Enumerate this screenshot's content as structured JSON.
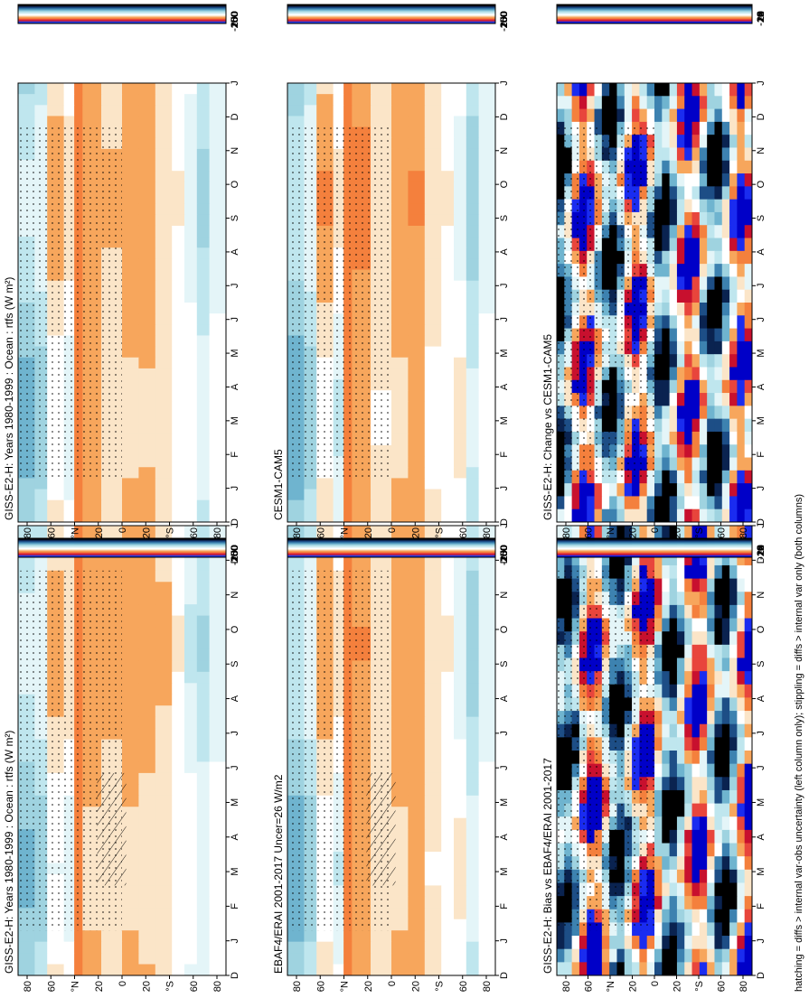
{
  "figure": {
    "footnote": "hatching = diffs > internal var-obs uncertainty (left column only); stippling = diffs > internal var only (both columns)",
    "months_axis": [
      "D",
      "J",
      "F",
      "M",
      "A",
      "M",
      "J",
      "J",
      "A",
      "S",
      "O",
      "N",
      "D",
      "J"
    ],
    "lat_axis": [
      "80",
      "60",
      "°N",
      "20",
      "0",
      "20",
      "°S",
      "60",
      "80"
    ]
  },
  "colorbars": {
    "flux": {
      "labels": [
        "250",
        "200",
        "150",
        "100",
        "50",
        "0",
        "-50",
        "-100",
        "-150",
        "-200",
        "-250"
      ],
      "colors": [
        "#1a2cd4",
        "#2a44e8",
        "#c8102e",
        "#e8453c",
        "#f4803d",
        "#f7a65c",
        "#fbe5c8",
        "#ffffff",
        "#e4f5f8",
        "#bfe6ee",
        "#9fd3e0",
        "#6fb4cf",
        "#3d82b0",
        "#1d4e86",
        "#0a2350",
        "#000000"
      ]
    },
    "change": {
      "labels": [
        "20",
        "16",
        "12",
        "8",
        "4",
        "0",
        "-4",
        "-8",
        "-12",
        "-16",
        "-20"
      ],
      "colors": [
        "#0000c8",
        "#1a2cf0",
        "#c8102e",
        "#e8453c",
        "#f4803d",
        "#f7a65c",
        "#fbe5c8",
        "#ffffff",
        "#e4f5f8",
        "#bfe6ee",
        "#9fd3e0",
        "#6fb4cf",
        "#3d82b0",
        "#1d4e86",
        "#0a2350",
        "#000000"
      ]
    }
  },
  "panels": [
    {
      "id": "p-left-top",
      "title": "GISS-E2-H: Years 1980-1999 : Ocean : rtfs (W m²)",
      "kind": "flux",
      "hatch": true
    },
    {
      "id": "p-right-top",
      "title": "GISS-E2-H: Years 1980-1999 : Ocean : rtfs (W m²)",
      "kind": "flux",
      "hatch": false
    },
    {
      "id": "p-left-mid",
      "title": "EBAF4/ERAI 2001-2017 Uncer=26 W/m2",
      "kind": "flux",
      "hatch": true
    },
    {
      "id": "p-right-mid",
      "title": "CESM1-CAM5",
      "kind": "flux",
      "hatch": false
    },
    {
      "id": "p-left-bot",
      "title": "GISS-E2-H: Bias vs EBAF4/ERAI 2001-2017",
      "kind": "change",
      "hatch": true
    },
    {
      "id": "p-right-bot",
      "title": "GISS-E2-H: Change vs CESM1-CAM5",
      "kind": "change",
      "hatch": false
    }
  ],
  "chart_data": [
    {
      "type": "heatmap",
      "title": "GISS-E2-H: Years 1980-1999 : Ocean : rtfs (W m²)",
      "x": [
        "D",
        "J",
        "F",
        "M",
        "A",
        "M",
        "J",
        "J",
        "A",
        "S",
        "O",
        "N",
        "D",
        "J"
      ],
      "y": [
        "80",
        "60",
        "°N",
        "20",
        "0",
        "20",
        "°S",
        "60",
        "80"
      ],
      "colorbar": [
        250,
        200,
        150,
        100,
        50,
        0,
        -50,
        -100,
        -150,
        -200,
        -250
      ]
    },
    {
      "type": "heatmap",
      "title": "GISS-E2-H: Years 1980-1999 : Ocean : rtfs (W m²)",
      "x": [
        "D",
        "J",
        "F",
        "M",
        "A",
        "M",
        "J",
        "J",
        "A",
        "S",
        "O",
        "N",
        "D",
        "J"
      ],
      "y": [
        "80",
        "60",
        "°N",
        "20",
        "0",
        "20",
        "°S",
        "60",
        "80"
      ],
      "colorbar": [
        250,
        200,
        150,
        100,
        50,
        0,
        -50,
        -100,
        -150,
        -200,
        -250
      ]
    },
    {
      "type": "heatmap",
      "title": "EBAF4/ERAI 2001-2017 Uncer=26 W/m2",
      "x": [
        "D",
        "J",
        "F",
        "M",
        "A",
        "M",
        "J",
        "J",
        "A",
        "S",
        "O",
        "N",
        "D",
        "J"
      ],
      "y": [
        "80",
        "60",
        "°N",
        "20",
        "0",
        "20",
        "°S",
        "60",
        "80"
      ],
      "colorbar": [
        250,
        200,
        150,
        100,
        50,
        0,
        -50,
        -100,
        -150,
        -200,
        -250
      ]
    },
    {
      "type": "heatmap",
      "title": "CESM1-CAM5",
      "x": [
        "D",
        "J",
        "F",
        "M",
        "A",
        "M",
        "J",
        "J",
        "A",
        "S",
        "O",
        "N",
        "D",
        "J"
      ],
      "y": [
        "80",
        "60",
        "°N",
        "20",
        "0",
        "20",
        "°S",
        "60",
        "80"
      ],
      "colorbar": [
        250,
        200,
        150,
        100,
        50,
        0,
        -50,
        -100,
        -150,
        -200,
        -250
      ]
    },
    {
      "type": "heatmap",
      "title": "GISS-E2-H: Bias vs EBAF4/ERAI 2001-2017",
      "x": [
        "D",
        "J",
        "F",
        "M",
        "A",
        "M",
        "J",
        "J",
        "A",
        "S",
        "O",
        "N",
        "D",
        "J"
      ],
      "y": [
        "80",
        "60",
        "°N",
        "20",
        "0",
        "20",
        "°S",
        "60",
        "80"
      ],
      "colorbar": [
        20,
        16,
        12,
        8,
        4,
        0,
        -4,
        -8,
        -12,
        -16,
        -20
      ]
    },
    {
      "type": "heatmap",
      "title": "GISS-E2-H: Change vs CESM1-CAM5",
      "x": [
        "D",
        "J",
        "F",
        "M",
        "A",
        "M",
        "J",
        "J",
        "A",
        "S",
        "O",
        "N",
        "D",
        "J"
      ],
      "y": [
        "80",
        "60",
        "°N",
        "20",
        "0",
        "20",
        "°S",
        "60",
        "80"
      ],
      "colorbar": [
        20,
        16,
        12,
        8,
        4,
        0,
        -4,
        -8,
        -12,
        -16,
        -20
      ]
    }
  ]
}
